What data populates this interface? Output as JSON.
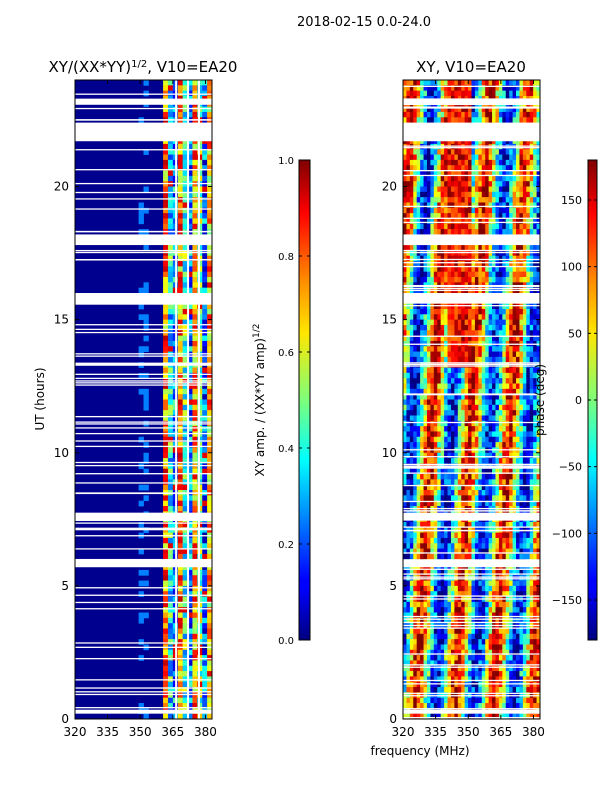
{
  "suptitle": "2018-02-15 0.0-24.0",
  "chart_data": [
    {
      "type": "heatmap",
      "title": "XY/(XX*YY)",
      "title_exponent": "1/2",
      "title_suffix": ", V10=EA20",
      "xlabel": "",
      "ylabel": "UT (hours)",
      "xlim": [
        320,
        383
      ],
      "ylim": [
        0,
        24
      ],
      "xticks": [
        320,
        335,
        350,
        365,
        380
      ],
      "yticks": [
        0,
        5,
        10,
        15,
        20
      ],
      "colorbar": {
        "label": "XY amp. / (XX*YY amp)",
        "label_exponent": "1/2",
        "range": [
          0.0,
          1.0
        ],
        "ticks": [
          "0.0",
          "0.2",
          "0.4",
          "0.6",
          "0.8",
          "1.0"
        ]
      },
      "flagged_hours": [
        [
          21.7,
          22.4
        ],
        [
          17.8,
          18.2
        ],
        [
          15.6,
          16.0
        ],
        [
          7.45,
          7.75
        ],
        [
          5.7,
          6.0
        ],
        [
          23.1,
          23.3
        ],
        [
          0.2,
          0.35
        ]
      ],
      "active_band_mhz": [
        360,
        383
      ]
    },
    {
      "type": "heatmap",
      "title": "XY, V10=EA20",
      "xlabel": "frequency (MHz)",
      "ylabel": "",
      "xlim": [
        320,
        383
      ],
      "ylim": [
        0,
        24
      ],
      "xticks": [
        320,
        335,
        350,
        365,
        380
      ],
      "yticks": [
        0,
        5,
        10,
        15,
        20
      ],
      "colorbar": {
        "label": "phase (deg)",
        "range": [
          -180,
          180
        ],
        "ticks": [
          "150",
          "100",
          "50",
          "0",
          "−50",
          "−100",
          "−150"
        ]
      },
      "flagged_hours": [
        [
          21.7,
          22.4
        ],
        [
          17.8,
          18.2
        ],
        [
          15.6,
          16.0
        ],
        [
          7.45,
          7.75
        ],
        [
          5.7,
          6.0
        ],
        [
          23.1,
          23.3
        ],
        [
          0.2,
          0.35
        ]
      ]
    }
  ]
}
